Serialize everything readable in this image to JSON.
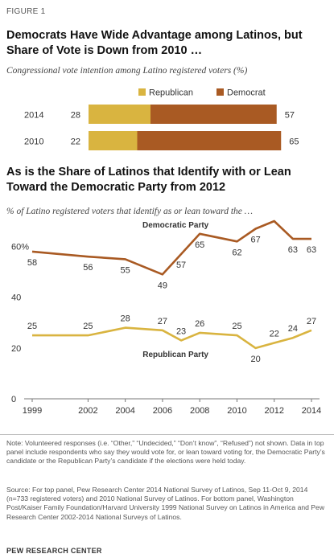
{
  "figure_label": "FIGURE 1",
  "colors": {
    "republican": "#d9b440",
    "democrat": "#a95a23",
    "grid": "#d9d9d9",
    "axis": "#777777"
  },
  "chart_data": [
    {
      "type": "bar",
      "title": "Democrats Have Wide Advantage among Latinos, but Share of Vote is Down from 2010 …",
      "subtitle": "Congressional vote intention among Latino registered voters (%)",
      "stacked": true,
      "orientation": "horizontal",
      "categories": [
        "2014",
        "2010"
      ],
      "series": [
        {
          "name": "Republican",
          "values": [
            28,
            22
          ],
          "color": "#d9b440"
        },
        {
          "name": "Democrat",
          "values": [
            57,
            65
          ],
          "color": "#a95a23"
        }
      ],
      "legend_position": "top"
    },
    {
      "type": "line",
      "title": "As is the Share of Latinos that Identify with or Lean Toward the Democratic Party from 2012",
      "subtitle": "% of Latino registered voters that identify as or lean toward the …",
      "xlim": [
        1999,
        2014
      ],
      "ylim": [
        0,
        70
      ],
      "yticks": [
        0,
        20,
        40,
        60
      ],
      "ytick_labels": [
        "0",
        "20",
        "40",
        "60%"
      ],
      "xticks": [
        1999,
        2002,
        2004,
        2006,
        2008,
        2010,
        2012,
        2014
      ],
      "grid": false,
      "series": [
        {
          "name": "Democratic Party",
          "color": "#a95a23",
          "points": [
            [
              1999,
              58
            ],
            [
              2002,
              56
            ],
            [
              2004,
              55
            ],
            [
              2006,
              49
            ],
            [
              2007,
              57
            ],
            [
              2008,
              65
            ],
            [
              2010,
              62
            ],
            [
              2011,
              67
            ],
            [
              2012,
              70
            ],
            [
              2013,
              63
            ],
            [
              2014,
              63
            ]
          ]
        },
        {
          "name": "Republican Party",
          "color": "#d9b440",
          "points": [
            [
              1999,
              25
            ],
            [
              2002,
              25
            ],
            [
              2004,
              28
            ],
            [
              2006,
              27
            ],
            [
              2007,
              23
            ],
            [
              2008,
              26
            ],
            [
              2010,
              25
            ],
            [
              2011,
              20
            ],
            [
              2012,
              22
            ],
            [
              2013,
              24
            ],
            [
              2014,
              27
            ]
          ]
        }
      ]
    }
  ],
  "note": "Note: Volunteered responses (i.e. “Other,” “Undecided,” “Don’t know”, “Refused”) not shown. Data in top panel include respondents who say they would vote for, or lean toward voting for, the Democratic Party’s candidate or the Republican Party’s candidate if the elections were held today.",
  "source": "Source: For top panel, Pew Research Center 2014 National Survey of Latinos, Sep 11-Oct 9, 2014 (n=733 registered voters) and 2010 National Survey of Latinos. For bottom panel, Washington Post/Kaiser Family Foundation/Harvard University 1999 National Survey on Latinos in America and Pew Research Center 2002-2014 National Surveys of Latinos.",
  "footer": "PEW RESEARCH CENTER"
}
